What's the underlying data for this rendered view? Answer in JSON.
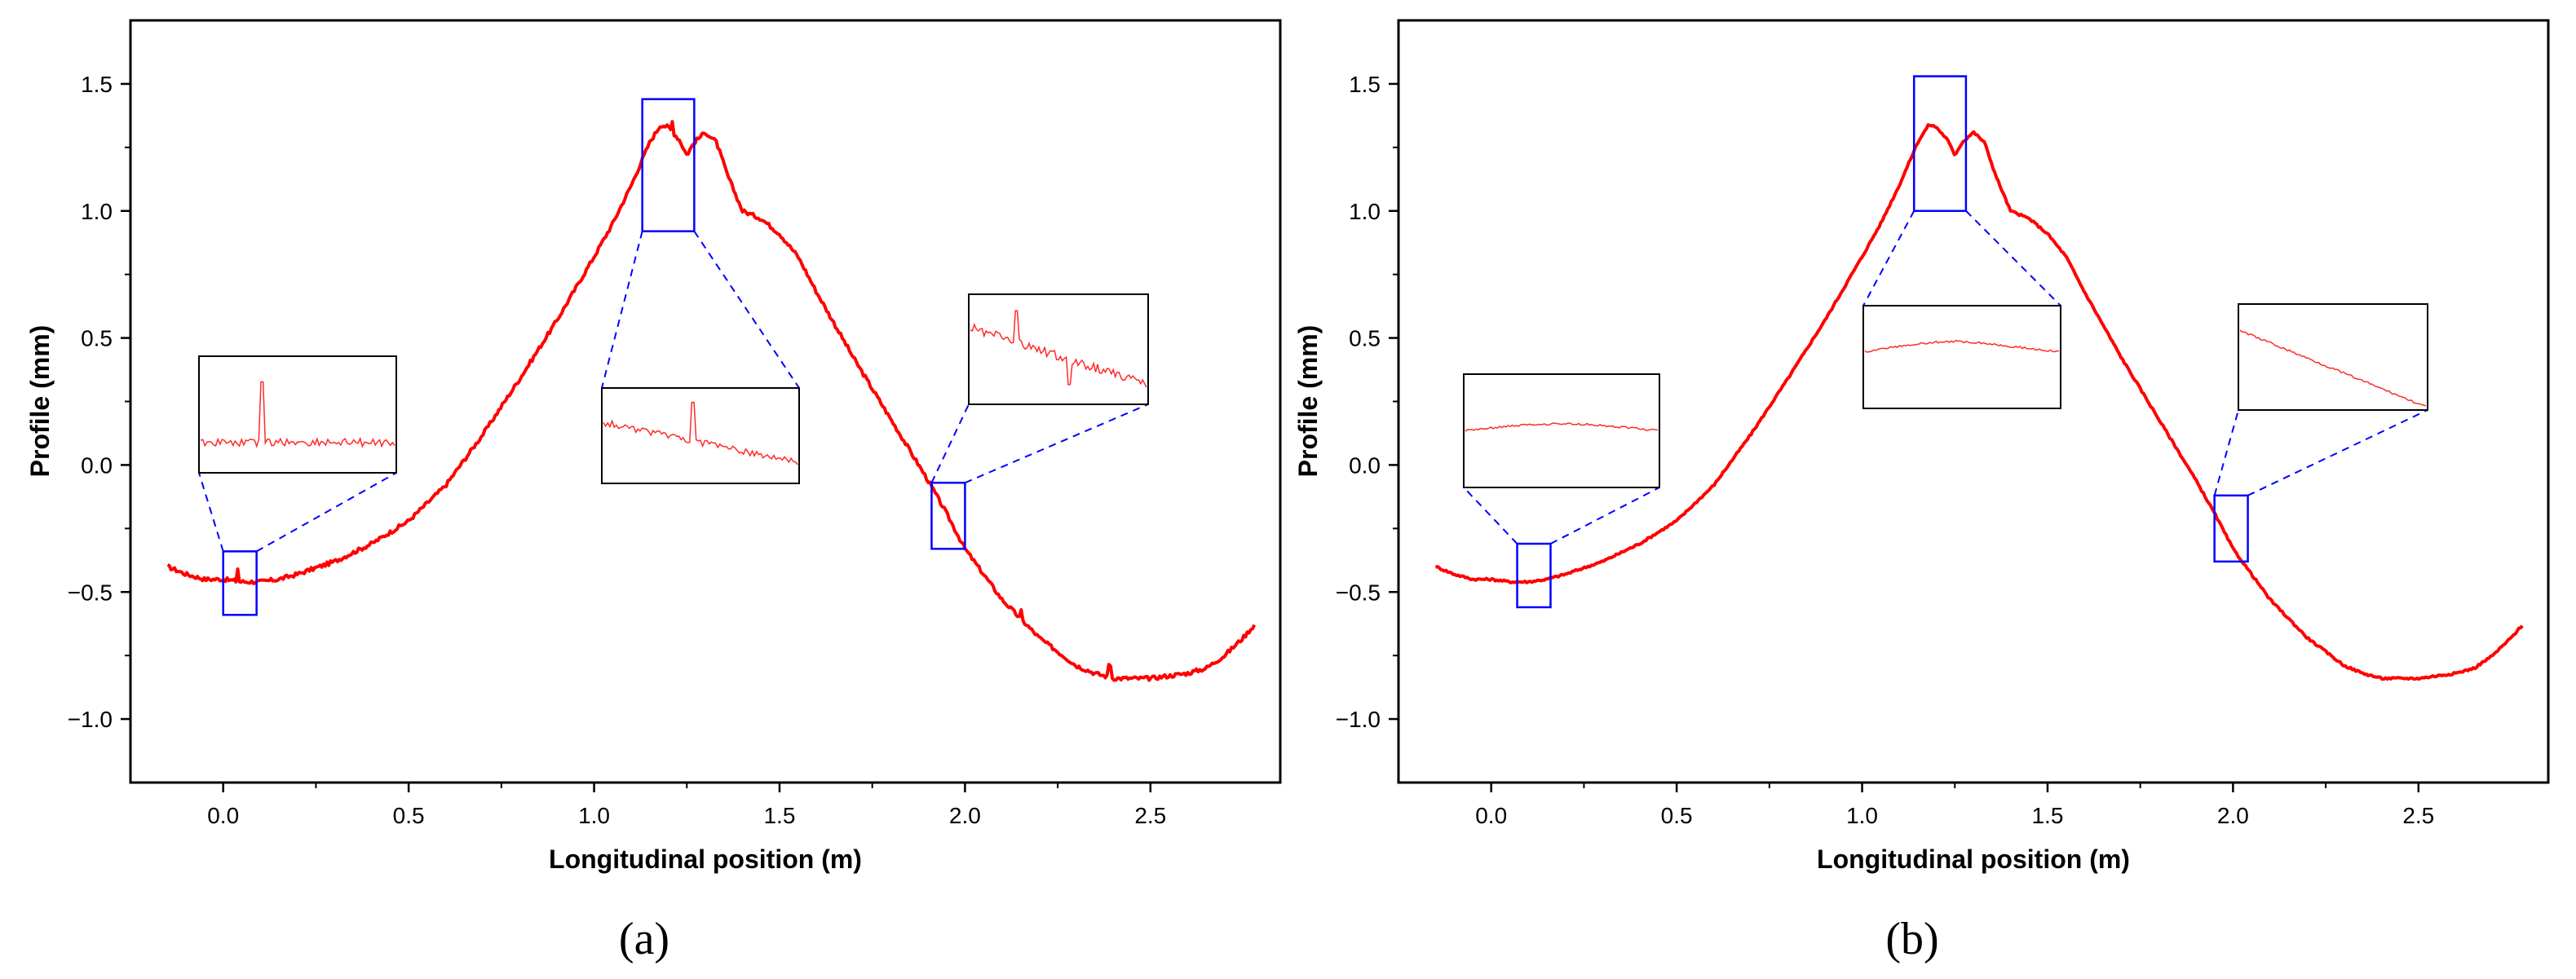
{
  "chart_data": [
    {
      "type": "line",
      "panel_label": "(a)",
      "xlabel": "Longitudinal position (m)",
      "ylabel": "Profile (mm)",
      "xlim": [
        -0.25,
        2.85
      ],
      "ylim": [
        -1.25,
        1.75
      ],
      "xticks": [
        0.0,
        0.5,
        1.0,
        1.5,
        2.0,
        2.5
      ],
      "xtick_labels": [
        "0.0",
        "0.5",
        "1.0",
        "1.5",
        "2.0",
        "2.5"
      ],
      "yticks": [
        -1.0,
        -0.5,
        0.0,
        0.5,
        1.0,
        1.5
      ],
      "ytick_labels": [
        "−1.0",
        "−0.5",
        "0.0",
        "0.5",
        "1.0",
        "1.5"
      ],
      "grid": false,
      "line_color": "#ff0000",
      "noisy": true,
      "series": [
        {
          "name": "profile",
          "x": [
            -0.15,
            -0.1,
            -0.05,
            0.0,
            0.05,
            0.1,
            0.15,
            0.2,
            0.3,
            0.4,
            0.5,
            0.6,
            0.7,
            0.8,
            0.9,
            1.0,
            1.05,
            1.1,
            1.15,
            1.18,
            1.2,
            1.23,
            1.25,
            1.27,
            1.3,
            1.33,
            1.36,
            1.4,
            1.45,
            1.5,
            1.55,
            1.6,
            1.7,
            1.8,
            1.9,
            1.95,
            2.0,
            2.1,
            2.2,
            2.3,
            2.35,
            2.4,
            2.45,
            2.5,
            2.55,
            2.6,
            2.65,
            2.7,
            2.75,
            2.78
          ],
          "y": [
            -0.4,
            -0.43,
            -0.45,
            -0.45,
            -0.46,
            -0.46,
            -0.45,
            -0.43,
            -0.38,
            -0.31,
            -0.22,
            -0.08,
            0.12,
            0.34,
            0.57,
            0.82,
            0.95,
            1.1,
            1.27,
            1.34,
            1.33,
            1.28,
            1.22,
            1.27,
            1.31,
            1.27,
            1.14,
            1.0,
            0.97,
            0.91,
            0.82,
            0.68,
            0.42,
            0.18,
            -0.06,
            -0.19,
            -0.33,
            -0.53,
            -0.68,
            -0.79,
            -0.82,
            -0.84,
            -0.84,
            -0.84,
            -0.83,
            -0.82,
            -0.8,
            -0.75,
            -0.68,
            -0.63
          ]
        }
      ],
      "spikes": [
        {
          "x": 0.04,
          "dy": 0.05
        },
        {
          "x": 1.21,
          "dy": 0.04
        },
        {
          "x": 2.15,
          "dy": 0.03
        },
        {
          "x": 2.39,
          "dy": 0.05
        }
      ],
      "zoom_regions": [
        {
          "x0": 0.0,
          "x1": 0.09,
          "y0": -0.59,
          "y1": -0.34,
          "inset": "left",
          "inset_kind": "flat-spike"
        },
        {
          "x0": 1.13,
          "x1": 1.27,
          "y0": 0.92,
          "y1": 1.44,
          "inset": "middle",
          "inset_kind": "descend-spike"
        },
        {
          "x0": 1.91,
          "x1": 2.0,
          "y0": -0.33,
          "y1": -0.07,
          "inset": "right",
          "inset_kind": "steep-spike"
        }
      ],
      "zoom_color": "#0000ff"
    },
    {
      "type": "line",
      "panel_label": "(b)",
      "xlabel": "Longitudinal position (m)",
      "ylabel": "Profile (mm)",
      "xlim": [
        -0.25,
        2.85
      ],
      "ylim": [
        -1.25,
        1.75
      ],
      "xticks": [
        0.0,
        0.5,
        1.0,
        1.5,
        2.0,
        2.5
      ],
      "xtick_labels": [
        "0.0",
        "0.5",
        "1.0",
        "1.5",
        "2.0",
        "2.5"
      ],
      "yticks": [
        -1.0,
        -0.5,
        0.0,
        0.5,
        1.0,
        1.5
      ],
      "ytick_labels": [
        "−1.0",
        "−0.5",
        "0.0",
        "0.5",
        "1.0",
        "1.5"
      ],
      "grid": false,
      "line_color": "#ff0000",
      "noisy": false,
      "series": [
        {
          "name": "profile",
          "x": [
            -0.15,
            -0.1,
            -0.05,
            0.0,
            0.05,
            0.1,
            0.15,
            0.2,
            0.3,
            0.4,
            0.5,
            0.6,
            0.7,
            0.8,
            0.9,
            1.0,
            1.05,
            1.1,
            1.15,
            1.18,
            1.2,
            1.23,
            1.25,
            1.27,
            1.3,
            1.33,
            1.36,
            1.4,
            1.45,
            1.5,
            1.55,
            1.6,
            1.7,
            1.8,
            1.9,
            1.95,
            2.0,
            2.1,
            2.2,
            2.3,
            2.35,
            2.4,
            2.45,
            2.5,
            2.55,
            2.6,
            2.65,
            2.7,
            2.75,
            2.78
          ],
          "y": [
            -0.4,
            -0.43,
            -0.45,
            -0.45,
            -0.46,
            -0.46,
            -0.45,
            -0.43,
            -0.38,
            -0.31,
            -0.22,
            -0.08,
            0.12,
            0.34,
            0.57,
            0.82,
            0.95,
            1.1,
            1.27,
            1.34,
            1.33,
            1.28,
            1.22,
            1.27,
            1.31,
            1.27,
            1.14,
            1.0,
            0.97,
            0.91,
            0.82,
            0.68,
            0.42,
            0.18,
            -0.06,
            -0.19,
            -0.33,
            -0.53,
            -0.68,
            -0.79,
            -0.82,
            -0.84,
            -0.84,
            -0.84,
            -0.83,
            -0.82,
            -0.8,
            -0.75,
            -0.68,
            -0.63
          ]
        }
      ],
      "spikes": [],
      "zoom_regions": [
        {
          "x0": 0.07,
          "x1": 0.16,
          "y0": -0.56,
          "y1": -0.31,
          "inset": "left",
          "inset_kind": "flat-smooth"
        },
        {
          "x0": 1.14,
          "x1": 1.28,
          "y0": 1.0,
          "y1": 1.53,
          "inset": "middle",
          "inset_kind": "arc-smooth"
        },
        {
          "x0": 1.95,
          "x1": 2.04,
          "y0": -0.38,
          "y1": -0.12,
          "inset": "right",
          "inset_kind": "steep-smooth"
        }
      ],
      "zoom_color": "#0000ff"
    }
  ]
}
